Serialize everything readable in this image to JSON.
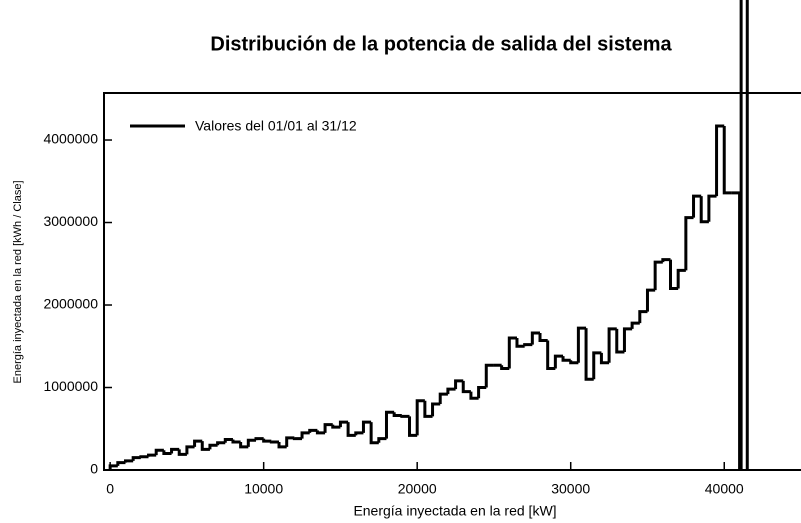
{
  "chart_data": {
    "type": "histogram",
    "title": "Distribución de la potencia de salida del sistema",
    "xlabel": "Energía inyectada en la red [kW]",
    "ylabel": "Energía  inyectada  en  la  red  [kWh  /  Clase]",
    "legend": "Valores del 01/01 al 31/12",
    "legend_position": "upper left",
    "color": "#000000",
    "bins": [
      0,
      500,
      1000,
      1500,
      2000,
      2500,
      3000,
      3500,
      4000,
      4500,
      5000,
      5500,
      6000,
      6500,
      7000,
      7500,
      8000,
      8500,
      9000,
      9500,
      10000,
      10500,
      11000,
      11500,
      12000,
      12500,
      13000,
      13500,
      14000,
      14500,
      15000,
      15500,
      16000,
      16500,
      17000,
      17500,
      18000,
      18500,
      19000,
      19500,
      20000,
      20500,
      21000,
      21500,
      22000,
      22500,
      23000,
      23500,
      24000,
      24500,
      25000,
      25500,
      26000,
      26500,
      27000,
      27500,
      28000,
      28500,
      29000,
      29500,
      30000,
      30500,
      31000,
      31500,
      32000,
      32500,
      33000,
      33500,
      34000,
      34500,
      35000,
      35500,
      36000,
      36500,
      37000,
      37500,
      38000,
      38500,
      39000,
      39500,
      40000,
      40500,
      41000
    ],
    "values": [
      50000,
      90000,
      110000,
      150000,
      160000,
      180000,
      240000,
      200000,
      250000,
      190000,
      280000,
      350000,
      250000,
      300000,
      330000,
      370000,
      340000,
      280000,
      360000,
      380000,
      350000,
      340000,
      280000,
      390000,
      380000,
      450000,
      480000,
      450000,
      550000,
      520000,
      580000,
      420000,
      450000,
      580000,
      330000,
      380000,
      700000,
      660000,
      650000,
      420000,
      840000,
      650000,
      800000,
      920000,
      980000,
      1080000,
      950000,
      870000,
      1000000,
      1270000,
      1270000,
      1230000,
      1600000,
      1500000,
      1520000,
      1660000,
      1570000,
      1230000,
      1380000,
      1330000,
      1300000,
      1720000,
      1100000,
      1420000,
      1300000,
      1710000,
      1430000,
      1710000,
      1780000,
      1920000,
      2180000,
      2520000,
      2550000,
      2200000,
      2420000,
      3060000,
      3320000,
      3010000,
      3320000,
      4170000,
      3360000,
      3360000
    ],
    "vlines": [
      41100,
      41500
    ],
    "xlim": [
      -400,
      45000
    ],
    "xticks": [
      0,
      10000,
      20000,
      30000,
      40000
    ],
    "ylim": [
      0,
      4570000
    ],
    "yticks": [
      0,
      1000000,
      2000000,
      3000000,
      4000000
    ]
  }
}
